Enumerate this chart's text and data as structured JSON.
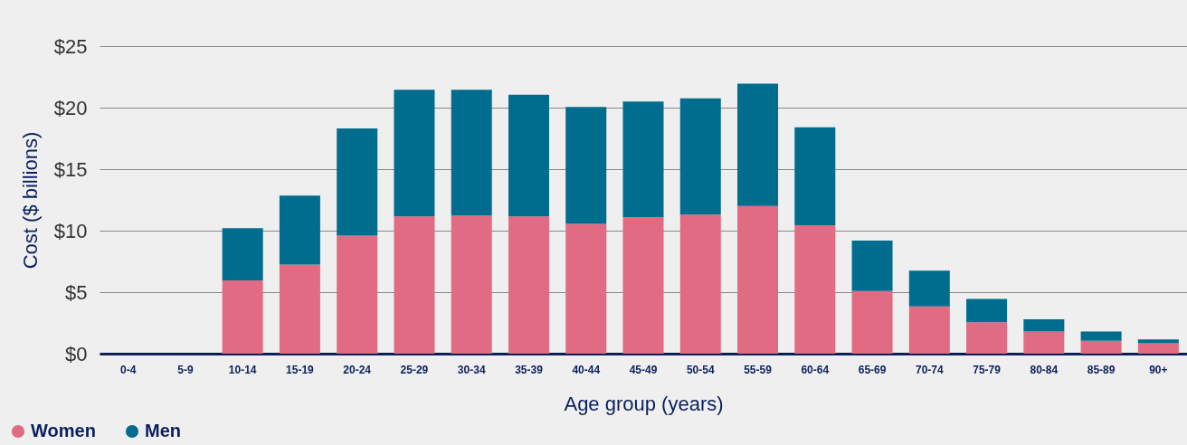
{
  "chart_data": {
    "type": "bar",
    "stacked": true,
    "xlabel": "Age group (years)",
    "ylabel": "Cost ($ billions)",
    "categories": [
      "0-4",
      "5-9",
      "10-14",
      "15-19",
      "20-24",
      "25-29",
      "30-34",
      "35-39",
      "40-44",
      "45-49",
      "50-54",
      "55-59",
      "60-64",
      "65-69",
      "70-74",
      "75-79",
      "80-84",
      "85-89",
      "90+"
    ],
    "series": [
      {
        "name": "Women",
        "color": "#e06b83",
        "values": [
          0,
          0,
          5.95,
          7.25,
          9.6,
          11.15,
          11.25,
          11.15,
          10.55,
          11.1,
          11.3,
          12.0,
          10.45,
          5.1,
          3.85,
          2.55,
          1.8,
          1.05,
          0.85
        ]
      },
      {
        "name": "Men",
        "color": "#006d8f",
        "values": [
          0,
          0,
          4.25,
          5.6,
          8.7,
          10.3,
          10.2,
          9.9,
          9.5,
          9.4,
          9.45,
          9.95,
          7.95,
          4.1,
          2.9,
          1.9,
          1.0,
          0.75,
          0.3
        ]
      }
    ],
    "ylim": [
      0,
      25
    ],
    "yticks": [
      {
        "value": 0,
        "label": "$0"
      },
      {
        "value": 5,
        "label": "$5"
      },
      {
        "value": 10,
        "label": "$10"
      },
      {
        "value": 15,
        "label": "$15"
      },
      {
        "value": 20,
        "label": "$20"
      },
      {
        "value": 25,
        "label": "$25"
      }
    ],
    "grid": "y",
    "legend": "bottom left"
  }
}
